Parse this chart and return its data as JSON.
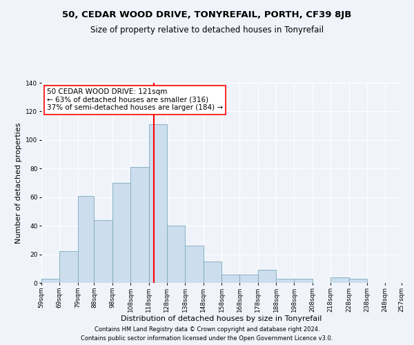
{
  "title": "50, CEDAR WOOD DRIVE, TONYREFAIL, PORTH, CF39 8JB",
  "subtitle": "Size of property relative to detached houses in Tonyrefail",
  "xlabel": "Distribution of detached houses by size in Tonyrefail",
  "ylabel": "Number of detached properties",
  "bar_color": "#ccdded",
  "bar_edge_color": "#7aaabb",
  "vline_x": 121,
  "vline_color": "red",
  "annotation_lines": [
    "50 CEDAR WOOD DRIVE: 121sqm",
    "← 63% of detached houses are smaller (316)",
    "37% of semi-detached houses are larger (184) →"
  ],
  "bin_edges": [
    59,
    69,
    79,
    88,
    98,
    108,
    118,
    128,
    138,
    148,
    158,
    168,
    178,
    188,
    198,
    208,
    218,
    228,
    238,
    248,
    257
  ],
  "bin_counts": [
    3,
    22,
    61,
    44,
    70,
    81,
    111,
    40,
    26,
    15,
    6,
    6,
    9,
    3,
    3,
    0,
    4,
    3,
    0,
    0
  ],
  "tick_labels": [
    "59sqm",
    "69sqm",
    "79sqm",
    "88sqm",
    "98sqm",
    "108sqm",
    "118sqm",
    "128sqm",
    "138sqm",
    "148sqm",
    "158sqm",
    "168sqm",
    "178sqm",
    "188sqm",
    "198sqm",
    "208sqm",
    "218sqm",
    "228sqm",
    "238sqm",
    "248sqm",
    "257sqm"
  ],
  "ylim": [
    0,
    140
  ],
  "yticks": [
    0,
    20,
    40,
    60,
    80,
    100,
    120,
    140
  ],
  "footer1": "Contains HM Land Registry data © Crown copyright and database right 2024.",
  "footer2": "Contains public sector information licensed under the Open Government Licence v3.0.",
  "background_color": "#f0f4fa",
  "plot_bg_color": "#f0f4fa",
  "title_fontsize": 9.5,
  "subtitle_fontsize": 8.5,
  "axis_label_fontsize": 8,
  "tick_fontsize": 6.5,
  "footer_fontsize": 6,
  "annotation_fontsize": 7.5
}
